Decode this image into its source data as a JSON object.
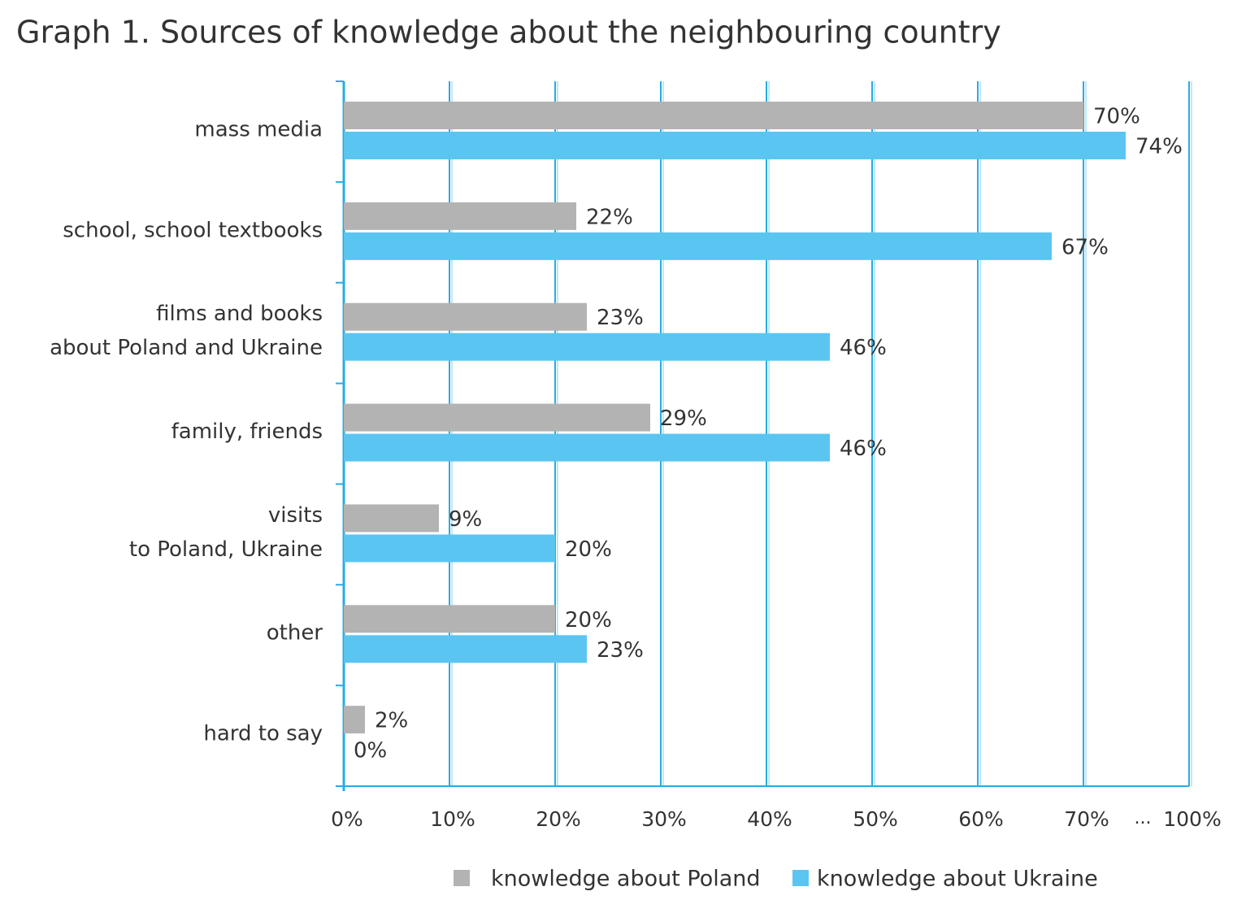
{
  "chart_data": {
    "type": "hbar",
    "title": "Graph 1. Sources of knowledge about the neighbouring country",
    "categories": [
      [
        "mass media"
      ],
      [
        "school, school textbooks"
      ],
      [
        "films and books",
        "about Poland and Ukraine"
      ],
      [
        "family, friends"
      ],
      [
        "visits",
        "to Poland, Ukraine"
      ],
      [
        "other"
      ],
      [
        "hard to say"
      ]
    ],
    "series": [
      {
        "name": "knowledge about Poland",
        "color": "#b3b3b3",
        "values": [
          70,
          22,
          23,
          29,
          9,
          20,
          2
        ],
        "value_labels": [
          "70%",
          "22%",
          "23%",
          "29%",
          "9%",
          "20%",
          "2%"
        ]
      },
      {
        "name": "knowledge about Ukraine",
        "color": "#5bc5f2",
        "values": [
          74,
          67,
          46,
          46,
          20,
          23,
          0
        ],
        "value_labels": [
          "74%",
          "67%",
          "46%",
          "46%",
          "20%",
          "23%",
          "0%"
        ]
      }
    ],
    "xlim": [
      0,
      100
    ],
    "xticks": [
      {
        "value": 0,
        "label": "0%"
      },
      {
        "value": 10,
        "label": "10%"
      },
      {
        "value": 20,
        "label": "20%"
      },
      {
        "value": 30,
        "label": "30%"
      },
      {
        "value": 40,
        "label": "40%"
      },
      {
        "value": 50,
        "label": "50%"
      },
      {
        "value": 60,
        "label": "60%"
      },
      {
        "value": 70,
        "label": "70%"
      },
      {
        "value": 100,
        "label": "100%"
      }
    ],
    "axis_break": "...",
    "grid": true,
    "legend": "bottom"
  }
}
